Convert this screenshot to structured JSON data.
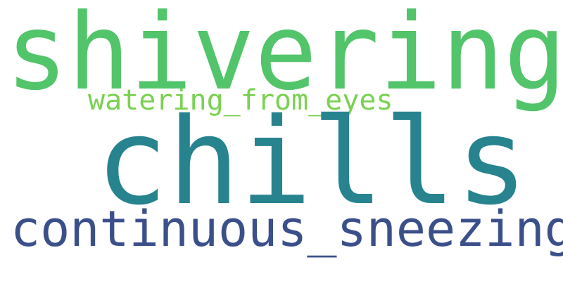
{
  "words": [
    {
      "text": "shivering",
      "color": "#52c46a"
    },
    {
      "text": "watering_from_eyes",
      "color": "#7ad151"
    },
    {
      "text": "chills",
      "color": "#27838e"
    },
    {
      "text": "continuous_sneezing",
      "color": "#3b4f8a"
    }
  ]
}
